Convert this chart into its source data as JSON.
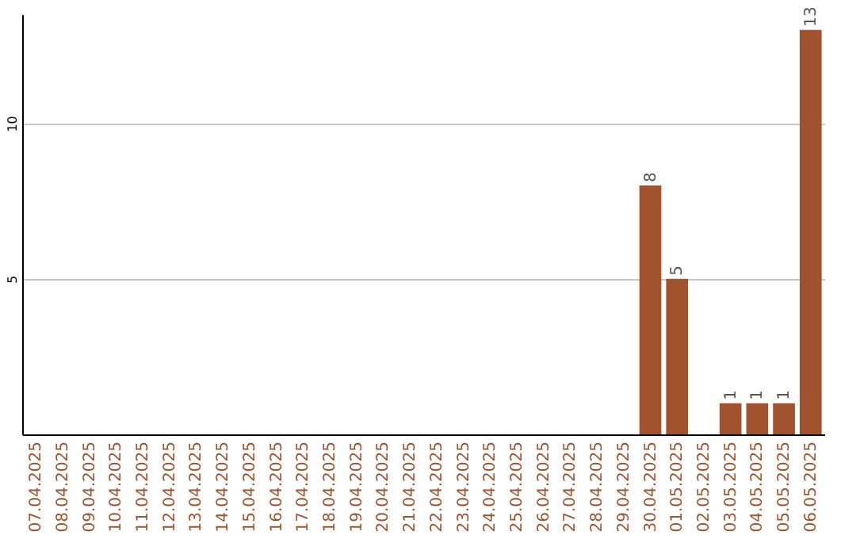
{
  "chart_data": {
    "type": "bar",
    "categories": [
      "07.04.2025",
      "08.04.2025",
      "09.04.2025",
      "10.04.2025",
      "11.04.2025",
      "12.04.2025",
      "13.04.2025",
      "14.04.2025",
      "15.04.2025",
      "16.04.2025",
      "17.04.2025",
      "18.04.2025",
      "19.04.2025",
      "20.04.2025",
      "21.04.2025",
      "22.04.2025",
      "23.04.2025",
      "24.04.2025",
      "25.04.2025",
      "26.04.2025",
      "27.04.2025",
      "28.04.2025",
      "29.04.2025",
      "30.04.2025",
      "01.05.2025",
      "02.05.2025",
      "03.05.2025",
      "04.05.2025",
      "05.05.2025",
      "06.05.2025"
    ],
    "values": [
      0,
      0,
      0,
      0,
      0,
      0,
      0,
      0,
      0,
      0,
      0,
      0,
      0,
      0,
      0,
      0,
      0,
      0,
      0,
      0,
      0,
      0,
      0,
      8,
      5,
      0,
      1,
      1,
      1,
      13
    ],
    "value_labels": [
      null,
      null,
      null,
      null,
      null,
      null,
      null,
      null,
      null,
      null,
      null,
      null,
      null,
      null,
      null,
      null,
      null,
      null,
      null,
      null,
      null,
      null,
      null,
      "8",
      "5",
      null,
      "1",
      "1",
      "1",
      "13"
    ],
    "color": "#a0522d",
    "ylim": [
      0,
      13.5
    ],
    "yticks": [
      5,
      10
    ],
    "grid": "y"
  }
}
